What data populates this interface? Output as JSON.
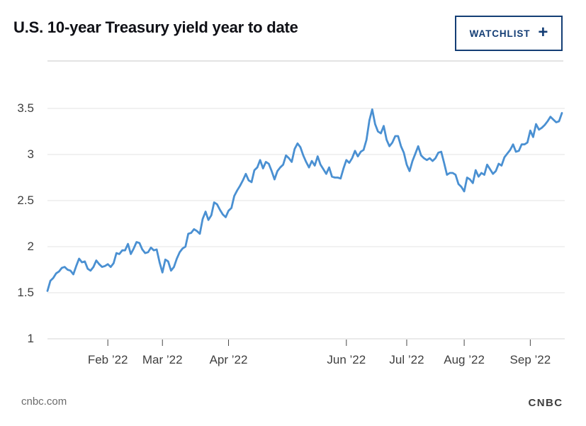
{
  "header": {
    "title": "U.S. 10-year Treasury yield year to date",
    "watchlist_button": {
      "label": "WATCHLIST",
      "plus": "+"
    }
  },
  "footer": {
    "source": "cnbc.com",
    "logo_text": "CNBC",
    "peacock_icon": "cnbc-peacock"
  },
  "colors": {
    "background": "#ffffff",
    "accent_navy": "#143e75",
    "line_blue": "#4a90d2",
    "grid_gray": "#e3e3e3",
    "baseline_gray": "#d6d6d6",
    "tick_mark": "#474747",
    "axis_label": "#3f3f3f",
    "title_text": "#0f1016",
    "footer_gray": "#6b6b6b",
    "logo_gray": "#3e3e3e"
  },
  "chart_data": {
    "type": "line",
    "title": "U.S. 10-year Treasury yield year to date",
    "series_name": "U.S. 10-year Treasury yield (%)",
    "xlabel": "",
    "ylabel": "",
    "ylim": [
      1,
      3.5
    ],
    "grid": "horizontal-only",
    "legend": "none",
    "y_ticks": [
      "3.5",
      "3",
      "2.5",
      "2",
      "1.5",
      "1"
    ],
    "x_ticks": [
      {
        "label": "Feb ’22",
        "index": 21
      },
      {
        "label": "Mar ’22",
        "index": 40
      },
      {
        "label": "Apr ’22",
        "index": 63
      },
      {
        "label": "Jun ’22",
        "index": 104
      },
      {
        "label": "Jul ’22",
        "index": 125
      },
      {
        "label": "Aug ’22",
        "index": 145
      },
      {
        "label": "Sep ’22",
        "index": 168
      }
    ],
    "values": [
      1.52,
      1.63,
      1.66,
      1.71,
      1.73,
      1.77,
      1.78,
      1.75,
      1.74,
      1.7,
      1.79,
      1.87,
      1.83,
      1.84,
      1.76,
      1.74,
      1.78,
      1.85,
      1.81,
      1.78,
      1.79,
      1.81,
      1.78,
      1.82,
      1.93,
      1.92,
      1.96,
      1.96,
      2.03,
      1.92,
      1.98,
      2.05,
      2.04,
      1.97,
      1.93,
      1.94,
      1.99,
      1.96,
      1.97,
      1.83,
      1.72,
      1.86,
      1.84,
      1.74,
      1.78,
      1.87,
      1.94,
      1.98,
      2.0,
      2.14,
      2.15,
      2.19,
      2.17,
      2.14,
      2.3,
      2.38,
      2.29,
      2.34,
      2.48,
      2.46,
      2.4,
      2.35,
      2.32,
      2.39,
      2.42,
      2.55,
      2.61,
      2.66,
      2.72,
      2.79,
      2.72,
      2.7,
      2.83,
      2.86,
      2.94,
      2.85,
      2.92,
      2.9,
      2.82,
      2.73,
      2.82,
      2.86,
      2.89,
      2.99,
      2.96,
      2.92,
      3.06,
      3.12,
      3.08,
      2.99,
      2.92,
      2.86,
      2.93,
      2.88,
      2.98,
      2.89,
      2.84,
      2.79,
      2.86,
      2.76,
      2.75,
      2.75,
      2.74,
      2.85,
      2.94,
      2.91,
      2.96,
      3.04,
      2.98,
      3.03,
      3.05,
      3.16,
      3.37,
      3.49,
      3.33,
      3.25,
      3.23,
      3.31,
      3.16,
      3.09,
      3.13,
      3.2,
      3.2,
      3.09,
      3.02,
      2.89,
      2.82,
      2.93,
      3.01,
      3.09,
      2.99,
      2.96,
      2.94,
      2.96,
      2.93,
      2.96,
      3.02,
      3.03,
      2.91,
      2.78,
      2.8,
      2.8,
      2.78,
      2.68,
      2.65,
      2.6,
      2.75,
      2.73,
      2.69,
      2.83,
      2.76,
      2.8,
      2.78,
      2.89,
      2.84,
      2.79,
      2.82,
      2.9,
      2.88,
      2.97,
      3.01,
      3.05,
      3.11,
      3.03,
      3.04,
      3.11,
      3.11,
      3.13,
      3.26,
      3.19,
      3.33,
      3.27,
      3.29,
      3.32,
      3.36,
      3.41,
      3.38,
      3.35,
      3.36,
      3.45
    ]
  }
}
